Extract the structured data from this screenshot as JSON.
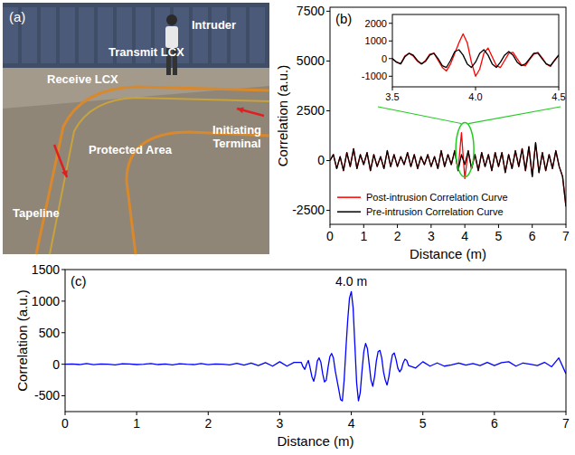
{
  "photo": {
    "panel_label": "(a)",
    "labels": {
      "intruder": "Intruder",
      "transmit": "Transmit LCX",
      "receive": "Receive LCX",
      "area": "Protected Area",
      "terminal": "Initiating Terminal",
      "tapeline": "Tapeline"
    }
  },
  "chart_data": [
    {
      "type": "line",
      "panel_label": "(b)",
      "x_label": "Distance (m)",
      "y_label": "Correlation (a.u.)",
      "legend": "lower left",
      "grid": false,
      "xlim": [
        0,
        7
      ],
      "xticks": [
        0,
        1,
        2,
        3,
        4,
        5,
        6,
        7
      ],
      "ylim": [
        -3200,
        7700
      ],
      "yticks": [
        -2500,
        0,
        2500,
        5000,
        7500
      ],
      "x": [
        0,
        0.1,
        0.2,
        0.3,
        0.4,
        0.5,
        0.6,
        0.7,
        0.8,
        0.9,
        1,
        1.1,
        1.2,
        1.3,
        1.4,
        1.5,
        1.6,
        1.7,
        1.8,
        1.9,
        2,
        2.1,
        2.2,
        2.3,
        2.4,
        2.5,
        2.6,
        2.7,
        2.8,
        2.9,
        3,
        3.1,
        3.2,
        3.3,
        3.4,
        3.5,
        3.6,
        3.7,
        3.8,
        3.9,
        4,
        4.1,
        4.2,
        4.3,
        4.4,
        4.5,
        4.6,
        4.7,
        4.8,
        4.9,
        5,
        5.1,
        5.2,
        5.3,
        5.4,
        5.5,
        5.6,
        5.7,
        5.8,
        5.9,
        6,
        6.1,
        6.2,
        6.3,
        6.4,
        6.5,
        6.6,
        6.7,
        6.8,
        6.9,
        7
      ],
      "series": [
        {
          "name": "Post-intrusion Correlation Curve",
          "color": "#ff0000",
          "values": [
            0,
            300,
            -400,
            200,
            -500,
            400,
            -300,
            600,
            -400,
            300,
            -200,
            400,
            -500,
            300,
            -300,
            200,
            -400,
            500,
            -300,
            300,
            -300,
            200,
            -200,
            400,
            -300,
            300,
            -400,
            200,
            -200,
            300,
            -300,
            200,
            -400,
            500,
            -300,
            300,
            -200,
            500,
            -500,
            1400,
            -900,
            500,
            -400,
            300,
            -500,
            400,
            -300,
            300,
            -500,
            400,
            -300,
            400,
            -600,
            300,
            -400,
            500,
            -300,
            600,
            -500,
            700,
            -800,
            900,
            -600,
            400,
            -500,
            300,
            -400,
            500,
            -300,
            -800,
            -2300
          ]
        },
        {
          "name": "Pre-intrusion Correlation Curve",
          "color": "#000000",
          "values": [
            0,
            300,
            -400,
            200,
            -500,
            400,
            -300,
            600,
            -400,
            300,
            -200,
            400,
            -500,
            300,
            -300,
            200,
            -400,
            500,
            -300,
            300,
            -300,
            200,
            -200,
            400,
            -300,
            300,
            -400,
            200,
            -200,
            300,
            -300,
            200,
            -400,
            500,
            -300,
            300,
            -200,
            500,
            -500,
            300,
            -200,
            500,
            -400,
            300,
            -500,
            400,
            -300,
            300,
            -500,
            400,
            -300,
            400,
            -600,
            300,
            -400,
            500,
            -300,
            600,
            -500,
            700,
            -800,
            900,
            -600,
            400,
            -500,
            300,
            -400,
            500,
            -300,
            -800,
            -2300
          ]
        }
      ]
    },
    {
      "type": "line",
      "grid": false,
      "xlim": [
        3.5,
        4.5
      ],
      "xticks": [
        3.5,
        {
          "value": 4,
          "label": "4.0"
        },
        4.5
      ],
      "ylim": [
        -1600,
        2500
      ],
      "yticks": [
        -1000,
        0,
        1000,
        2000
      ],
      "x": [
        3.5,
        3.525,
        3.55,
        3.575,
        3.6,
        3.625,
        3.65,
        3.675,
        3.7,
        3.725,
        3.75,
        3.775,
        3.8,
        3.825,
        3.85,
        3.875,
        3.9,
        3.925,
        3.95,
        3.975,
        4,
        4.025,
        4.05,
        4.075,
        4.1,
        4.125,
        4.15,
        4.175,
        4.2,
        4.225,
        4.25,
        4.275,
        4.3,
        4.325,
        4.35,
        4.375,
        4.4,
        4.425,
        4.45,
        4.475,
        4.5
      ],
      "series": [
        {
          "color": "#ff0000",
          "values": [
            0,
            -200,
            -300,
            150,
            300,
            150,
            -150,
            -300,
            -100,
            250,
            300,
            -100,
            -500,
            -700,
            -300,
            300,
            900,
            1400,
            900,
            -200,
            -1000,
            -600,
            300,
            600,
            100,
            -400,
            -500,
            -100,
            300,
            350,
            0,
            -350,
            -400,
            -50,
            250,
            350,
            50,
            -300,
            -450,
            -100,
            200
          ]
        },
        {
          "color": "#000000",
          "values": [
            0,
            -200,
            -300,
            100,
            300,
            200,
            -100,
            -300,
            -150,
            200,
            300,
            0,
            -400,
            -500,
            -100,
            400,
            500,
            200,
            -300,
            -500,
            -200,
            300,
            500,
            200,
            -300,
            -500,
            -200,
            200,
            400,
            200,
            -200,
            -400,
            -300,
            0,
            300,
            300,
            0,
            -300,
            -400,
            -100,
            200
          ]
        }
      ]
    },
    {
      "type": "line",
      "panel_label": "(c)",
      "x_label": "Distance (m)",
      "y_label": "Correlation (a.u.)",
      "annotation": "4.0 m",
      "grid": false,
      "xlim": [
        0,
        7
      ],
      "xticks": [
        0,
        1,
        2,
        3,
        4,
        5,
        6,
        7
      ],
      "ylim": [
        -750,
        1500
      ],
      "yticks": [
        -500,
        0,
        500,
        1000,
        1500
      ],
      "x": [
        0,
        0.1,
        0.2,
        0.3,
        0.4,
        0.5,
        0.6,
        0.7,
        0.8,
        0.9,
        1,
        1.1,
        1.2,
        1.3,
        1.4,
        1.5,
        1.6,
        1.7,
        1.8,
        1.9,
        2,
        2.1,
        2.2,
        2.3,
        2.4,
        2.5,
        2.6,
        2.7,
        2.8,
        2.9,
        3,
        3.1,
        3.2,
        3.3,
        3.325,
        3.35,
        3.375,
        3.4,
        3.425,
        3.45,
        3.475,
        3.5,
        3.525,
        3.55,
        3.575,
        3.6,
        3.625,
        3.65,
        3.675,
        3.7,
        3.725,
        3.75,
        3.775,
        3.8,
        3.825,
        3.85,
        3.875,
        3.9,
        3.925,
        3.95,
        3.975,
        4,
        4.025,
        4.05,
        4.075,
        4.1,
        4.125,
        4.15,
        4.175,
        4.2,
        4.225,
        4.25,
        4.275,
        4.3,
        4.325,
        4.35,
        4.375,
        4.4,
        4.425,
        4.45,
        4.475,
        4.5,
        4.525,
        4.55,
        4.575,
        4.6,
        4.625,
        4.65,
        4.675,
        4.7,
        4.725,
        4.75,
        4.775,
        4.8,
        4.9,
        5,
        5.1,
        5.2,
        5.3,
        5.4,
        5.5,
        5.6,
        5.7,
        5.8,
        5.9,
        6,
        6.1,
        6.2,
        6.3,
        6.4,
        6.5,
        6.6,
        6.7,
        6.8,
        6.9,
        7
      ],
      "series": [
        {
          "color": "#0000ff",
          "values": [
            0,
            5,
            -5,
            10,
            -8,
            5,
            0,
            -10,
            8,
            5,
            -5,
            0,
            10,
            -5,
            5,
            -10,
            8,
            0,
            -5,
            10,
            -8,
            5,
            0,
            -10,
            15,
            -15,
            20,
            -20,
            25,
            -30,
            40,
            -30,
            30,
            30,
            -40,
            -80,
            0,
            60,
            -60,
            -200,
            -270,
            -150,
            50,
            100,
            30,
            -150,
            -280,
            -250,
            -50,
            120,
            170,
            100,
            -100,
            -250,
            -400,
            -560,
            -580,
            -250,
            250,
            700,
            1050,
            1150,
            900,
            300,
            -300,
            -580,
            -450,
            -100,
            200,
            330,
            250,
            0,
            -250,
            -350,
            -200,
            50,
            200,
            220,
            100,
            -120,
            -250,
            -330,
            -200,
            0,
            150,
            180,
            80,
            -60,
            -120,
            -80,
            20,
            80,
            60,
            -20,
            -60,
            40,
            -30,
            20,
            -30,
            -10,
            20,
            -15,
            10,
            -20,
            30,
            -20,
            25,
            40,
            -30,
            20,
            0,
            -20,
            30,
            -40,
            100,
            -150
          ]
        }
      ]
    }
  ]
}
